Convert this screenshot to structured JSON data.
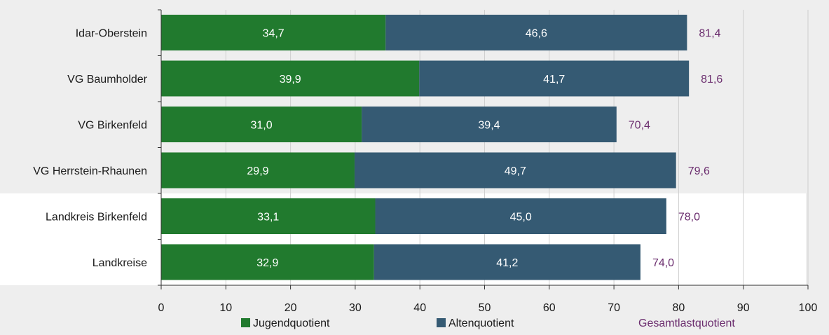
{
  "chart_data": {
    "type": "bar",
    "orientation": "horizontal",
    "stacked": true,
    "categories": [
      "Idar-Oberstein",
      "VG Baumholder",
      "VG Birkenfeld",
      "VG Herrstein-Rhaunen",
      "Landkreis Birkenfeld",
      "Landkreise"
    ],
    "series": [
      {
        "name": "Jugendquotient",
        "values": [
          34.7,
          39.9,
          31.0,
          29.9,
          33.1,
          32.9
        ],
        "labels": [
          "34,7",
          "39,9",
          "31,0",
          "29,9",
          "33,1",
          "32,9"
        ],
        "color": "#217a2e"
      },
      {
        "name": "Altenquotient",
        "values": [
          46.6,
          41.7,
          39.4,
          49.7,
          45.0,
          41.2
        ],
        "labels": [
          "46,6",
          "41,7",
          "39,4",
          "49,7",
          "45,0",
          "41,2"
        ],
        "color": "#355a73"
      }
    ],
    "totals": {
      "name": "Gesamtlastquotient",
      "values": [
        81.4,
        81.6,
        70.4,
        79.6,
        78.0,
        74.0
      ],
      "labels": [
        "81,4",
        "81,6",
        "70,4",
        "79,6",
        "78,0",
        "74,0"
      ],
      "color": "#6b2d6e"
    },
    "xlim": [
      0,
      100
    ],
    "xticks": [
      0,
      10,
      20,
      30,
      40,
      50,
      60,
      70,
      80,
      90,
      100
    ],
    "highlight_categories": [
      "Landkreis Birkenfeld",
      "Landkreise"
    ],
    "grid": true,
    "legend_position": "bottom",
    "colors": {
      "background": "#eeeeee",
      "highlight_background": "#ffffff",
      "grid": "#cfcfcf",
      "axis": "#333333"
    }
  }
}
